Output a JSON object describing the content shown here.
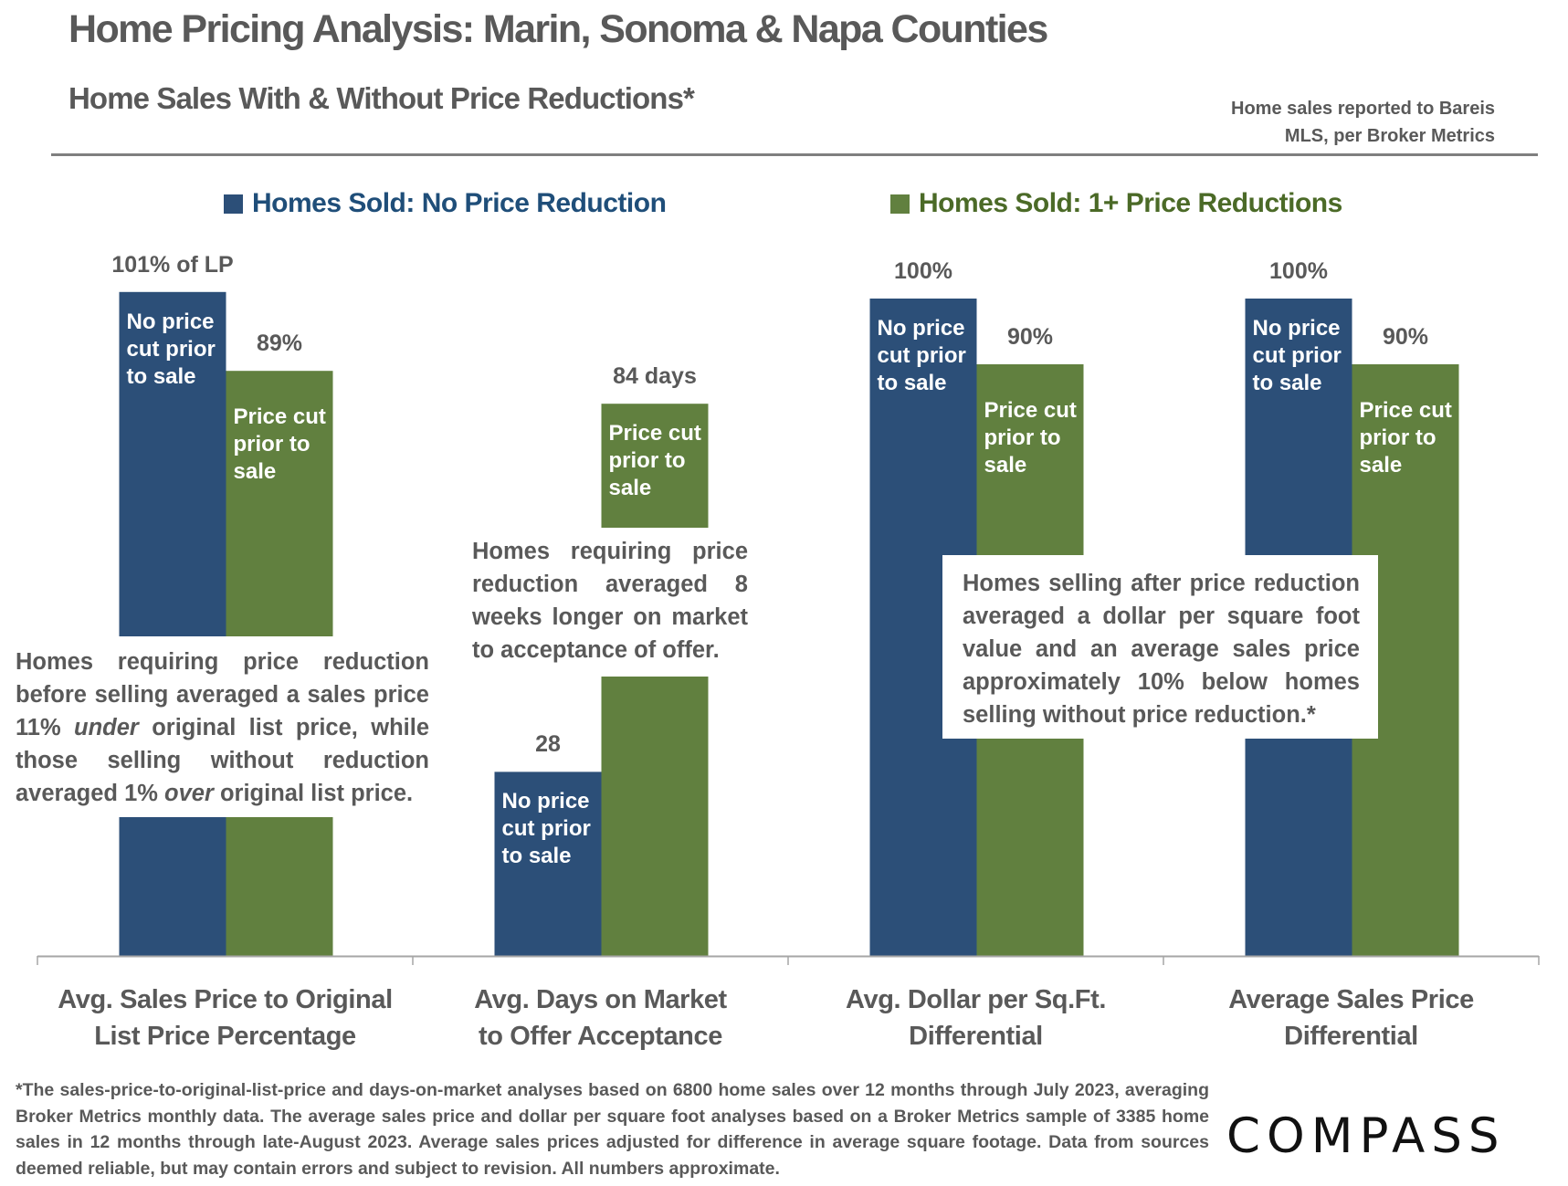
{
  "header": {
    "title": "Home Pricing Analysis: Marin, Sonoma & Napa Counties",
    "subtitle": "Home Sales With & Without Price Reductions*",
    "source_line1": "Home sales reported to Bareis",
    "source_line2": "MLS, per Broker Metrics"
  },
  "legend": {
    "blue_label": "Homes Sold: No Price Reduction",
    "green_label": "Homes Sold: 1+ Price Reductions"
  },
  "colors": {
    "no_reduction": "#2c4f78",
    "price_reduction": "#61803f",
    "legend_blue_text": "#1f4e79",
    "legend_green_text": "#4b6a27",
    "text_gray": "#595959",
    "axis": "#a6a6a6"
  },
  "chart_data": {
    "type": "bar",
    "title": "Home Sales With & Without Price Reductions*",
    "xlabel": "",
    "ylabel": "",
    "grid": false,
    "legend_position": "top",
    "categories": [
      "Avg. Sales Price to Original List Price Percentage",
      "Avg. Days on Market to Offer Acceptance",
      "Avg. Dollar per Sq.Ft. Differential",
      "Average Sales Price Differential"
    ],
    "category_lines": [
      [
        "Avg. Sales Price to Original",
        "List Price Percentage"
      ],
      [
        "Avg. Days on Market",
        "to Offer Acceptance"
      ],
      [
        "Avg. Dollar per Sq.Ft.",
        "Differential"
      ],
      [
        "Average Sales Price",
        "Differential"
      ]
    ],
    "series": [
      {
        "name": "Homes Sold: No Price Reduction",
        "values": [
          101,
          28,
          100,
          100
        ],
        "data_labels": [
          "101% of LP",
          "28",
          "100%",
          "100%"
        ],
        "bar_text": [
          "No price",
          "cut prior",
          "to sale"
        ]
      },
      {
        "name": "Homes Sold: 1+ Price Reductions",
        "values": [
          89,
          84,
          90,
          90
        ],
        "data_labels": [
          "89%",
          "84 days",
          "90%",
          "90%"
        ],
        "bar_text": [
          "Price cut",
          "prior to",
          "sale"
        ]
      }
    ],
    "ylim": [
      0,
      101
    ]
  },
  "notes": {
    "note1": {
      "p1": "Homes requiring price reduction before selling averaged a sales price 11% ",
      "em1": "under",
      "p2": " original list price, while those selling without reduction averaged 1% ",
      "em2": "over",
      "p3": " original list price."
    },
    "note2": "Homes requiring price reduction averaged 8 weeks longer on market to acceptance of offer.",
    "note3": "Homes selling after price reduction averaged a dollar per square foot value and an average sales price approximately 10% below homes selling without price reduction.*"
  },
  "footnote": "*The sales-price-to-original-list-price and days-on-market analyses based on 6800 home sales over 12 months through July 2023, averaging Broker Metrics monthly data. The average sales price and dollar per square foot analyses based on a Broker Metrics sample of 3385 home sales in 12 months through late-August 2023. Average sales prices adjusted for difference in average square footage. Data from sources deemed reliable, but may contain errors and subject to revision. All numbers approximate.",
  "logo": "COMPASS"
}
